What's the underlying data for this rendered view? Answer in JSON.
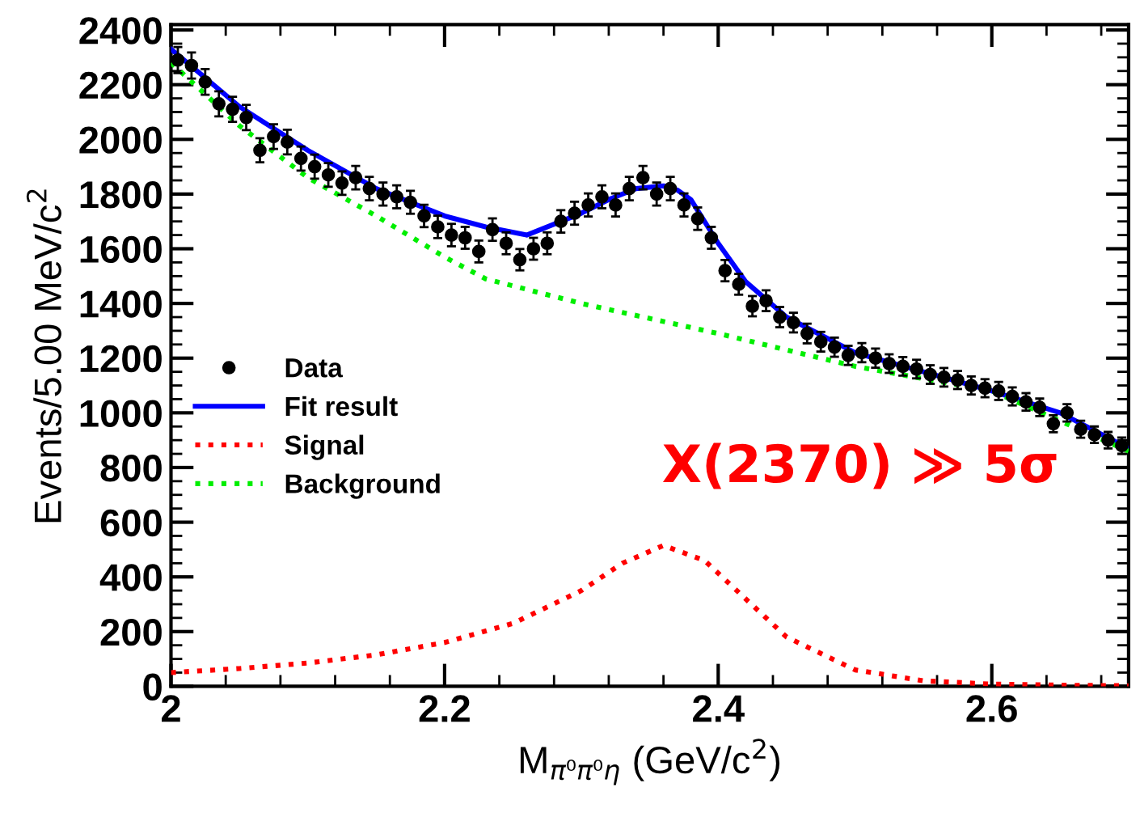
{
  "chart_data": {
    "type": "line",
    "xlabel": "M$_{π⁰π⁰η}$ (GeV/c$^{2}$)",
    "ylabel": "Events/5.00 MeV/c$^{2}$",
    "xlim": [
      2,
      2.7
    ],
    "xticks": [
      2,
      2.2,
      2.4,
      2.6
    ],
    "ylim": [
      0,
      2420
    ],
    "yticks": [
      0,
      200,
      400,
      600,
      800,
      1000,
      1200,
      1400,
      1600,
      1800,
      2000,
      2200,
      2400
    ],
    "grid": false,
    "legend": "left",
    "annotations": [
      "X(2370) ≫ 5σ"
    ],
    "series": [
      {
        "name": "Data",
        "type": "scatter",
        "marker": "circle",
        "color": "#000000",
        "x": [
          2.005,
          2.015,
          2.025,
          2.035,
          2.045,
          2.055,
          2.065,
          2.075,
          2.085,
          2.095,
          2.105,
          2.115,
          2.125,
          2.135,
          2.145,
          2.155,
          2.165,
          2.175,
          2.185,
          2.195,
          2.205,
          2.215,
          2.225,
          2.235,
          2.245,
          2.255,
          2.265,
          2.275,
          2.285,
          2.295,
          2.305,
          2.315,
          2.325,
          2.335,
          2.345,
          2.355,
          2.365,
          2.375,
          2.385,
          2.395,
          2.405,
          2.415,
          2.425,
          2.435,
          2.445,
          2.455,
          2.465,
          2.475,
          2.485,
          2.495,
          2.505,
          2.515,
          2.525,
          2.535,
          2.545,
          2.555,
          2.565,
          2.575,
          2.585,
          2.595,
          2.605,
          2.615,
          2.625,
          2.635,
          2.645,
          2.655,
          2.665,
          2.675,
          2.685,
          2.695
        ],
        "values": [
          2290,
          2270,
          2210,
          2130,
          2110,
          2080,
          1960,
          2010,
          1990,
          1930,
          1900,
          1870,
          1840,
          1860,
          1820,
          1800,
          1790,
          1770,
          1720,
          1680,
          1650,
          1640,
          1590,
          1670,
          1620,
          1560,
          1600,
          1620,
          1700,
          1730,
          1760,
          1790,
          1760,
          1820,
          1860,
          1800,
          1820,
          1760,
          1710,
          1640,
          1520,
          1470,
          1390,
          1410,
          1350,
          1330,
          1290,
          1260,
          1240,
          1210,
          1220,
          1200,
          1180,
          1170,
          1160,
          1140,
          1130,
          1120,
          1100,
          1090,
          1080,
          1060,
          1040,
          1020,
          960,
          1000,
          940,
          920,
          900,
          880
        ],
        "errors": [
          48,
          48,
          47,
          46,
          46,
          46,
          44,
          45,
          45,
          44,
          44,
          43,
          43,
          43,
          43,
          42,
          42,
          42,
          41,
          41,
          41,
          40,
          40,
          41,
          40,
          39,
          40,
          40,
          41,
          42,
          42,
          42,
          42,
          43,
          43,
          42,
          43,
          42,
          41,
          40,
          39,
          38,
          37,
          38,
          37,
          36,
          36,
          36,
          35,
          35,
          35,
          35,
          34,
          34,
          34,
          34,
          34,
          33,
          33,
          33,
          33,
          33,
          32,
          32,
          31,
          32,
          31,
          30,
          30,
          30
        ]
      },
      {
        "name": "Fit result",
        "type": "line",
        "line_style": "solid",
        "color": "#0000ff",
        "x": [
          2.0,
          2.05,
          2.1,
          2.15,
          2.2,
          2.23,
          2.26,
          2.28,
          2.3,
          2.32,
          2.34,
          2.36,
          2.37,
          2.38,
          2.4,
          2.42,
          2.45,
          2.5,
          2.55,
          2.6,
          2.65,
          2.7
        ],
        "values": [
          2330,
          2120,
          1960,
          1820,
          1720,
          1680,
          1650,
          1690,
          1730,
          1780,
          1820,
          1830,
          1815,
          1780,
          1620,
          1480,
          1350,
          1220,
          1150,
          1080,
          1000,
          870
        ]
      },
      {
        "name": "Signal",
        "type": "line",
        "line_style": "dotted",
        "color": "#ff0000",
        "x": [
          2.0,
          2.05,
          2.1,
          2.15,
          2.2,
          2.25,
          2.3,
          2.33,
          2.36,
          2.39,
          2.42,
          2.45,
          2.5,
          2.55,
          2.6,
          2.65,
          2.7
        ],
        "values": [
          50,
          65,
          85,
          115,
          160,
          230,
          350,
          450,
          515,
          460,
          320,
          180,
          60,
          20,
          8,
          4,
          2
        ]
      },
      {
        "name": "Background",
        "type": "line",
        "line_style": "dotted",
        "color": "#00ee00",
        "x": [
          2.0,
          2.05,
          2.1,
          2.15,
          2.2,
          2.23,
          2.3,
          2.4,
          2.5,
          2.6,
          2.7
        ],
        "values": [
          2280,
          2050,
          1860,
          1720,
          1570,
          1490,
          1400,
          1290,
          1170,
          1080,
          860
        ]
      }
    ]
  }
}
